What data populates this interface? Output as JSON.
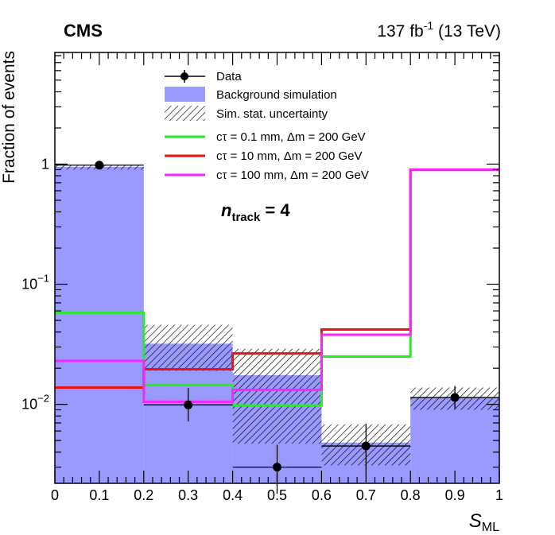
{
  "header": {
    "experiment": "CMS",
    "lumi_value": "137 fb",
    "lumi_exp": "-1",
    "lumi_energy": " (13 TeV)"
  },
  "colors": {
    "background_fill": "#9999ff",
    "data": "#000000",
    "signal_0p1mm": "#22ee22",
    "signal_10mm": "#ee1111",
    "signal_100mm": "#ff22ff"
  },
  "chart_data": {
    "type": "histogram",
    "title": "",
    "xlabel_main": "S",
    "xlabel_sub": "ML",
    "ylabel": "Fraction of events",
    "xlim": [
      0,
      1
    ],
    "ylim": [
      0.0022,
      8.5
    ],
    "yscale": "log",
    "bin_edges": [
      0,
      0.2,
      0.4,
      0.6,
      0.8,
      1.0
    ],
    "x_ticks": [
      "0",
      "0.1",
      "0.2",
      "0.3",
      "0.4",
      "0.5",
      "0.6",
      "0.7",
      "0.8",
      "0.9",
      "1"
    ],
    "y_ticks": [
      {
        "value": 1,
        "base": "1",
        "exp": ""
      },
      {
        "value": 0.1,
        "base": "10",
        "exp": "−1"
      },
      {
        "value": 0.01,
        "base": "10",
        "exp": "−2"
      }
    ],
    "annotation": {
      "main": "n",
      "sub": "track",
      "suffix": " = 4"
    },
    "background": {
      "name": "Background simulation",
      "values": [
        0.95,
        0.032,
        0.0175,
        0.0048,
        0.0115
      ],
      "stat_unc_low": [
        0.9,
        0.019,
        0.0047,
        0.0031,
        0.009
      ],
      "stat_unc_high": [
        0.99,
        0.046,
        0.029,
        0.0068,
        0.0138
      ]
    },
    "stat_unc_name": "Sim. stat. uncertainty",
    "data": {
      "name": "Data",
      "x": [
        0.1,
        0.3,
        0.5,
        0.7,
        0.9
      ],
      "y": [
        0.98,
        0.0099,
        0.003,
        0.0045,
        0.0114
      ],
      "y_err_low": [
        0.93,
        0.0072,
        0.0018,
        0.0028,
        0.0092
      ],
      "y_err_high": [
        1.03,
        0.0137,
        0.0046,
        0.0069,
        0.0142
      ]
    },
    "series": [
      {
        "name": "cτ = 0.1 mm, Δm = 200 GeV",
        "color": "#22ee22",
        "values": [
          0.058,
          0.0145,
          0.0098,
          0.025,
          0.9
        ]
      },
      {
        "name": "cτ = 10 mm, Δm = 200 GeV",
        "color": "#ee1111",
        "values": [
          0.0138,
          0.0196,
          0.0265,
          0.042,
          0.9
        ]
      },
      {
        "name": "cτ = 100 mm, Δm = 200 GeV",
        "color": "#ff22ff",
        "values": [
          0.023,
          0.0105,
          0.0132,
          0.038,
          0.9
        ]
      }
    ]
  }
}
